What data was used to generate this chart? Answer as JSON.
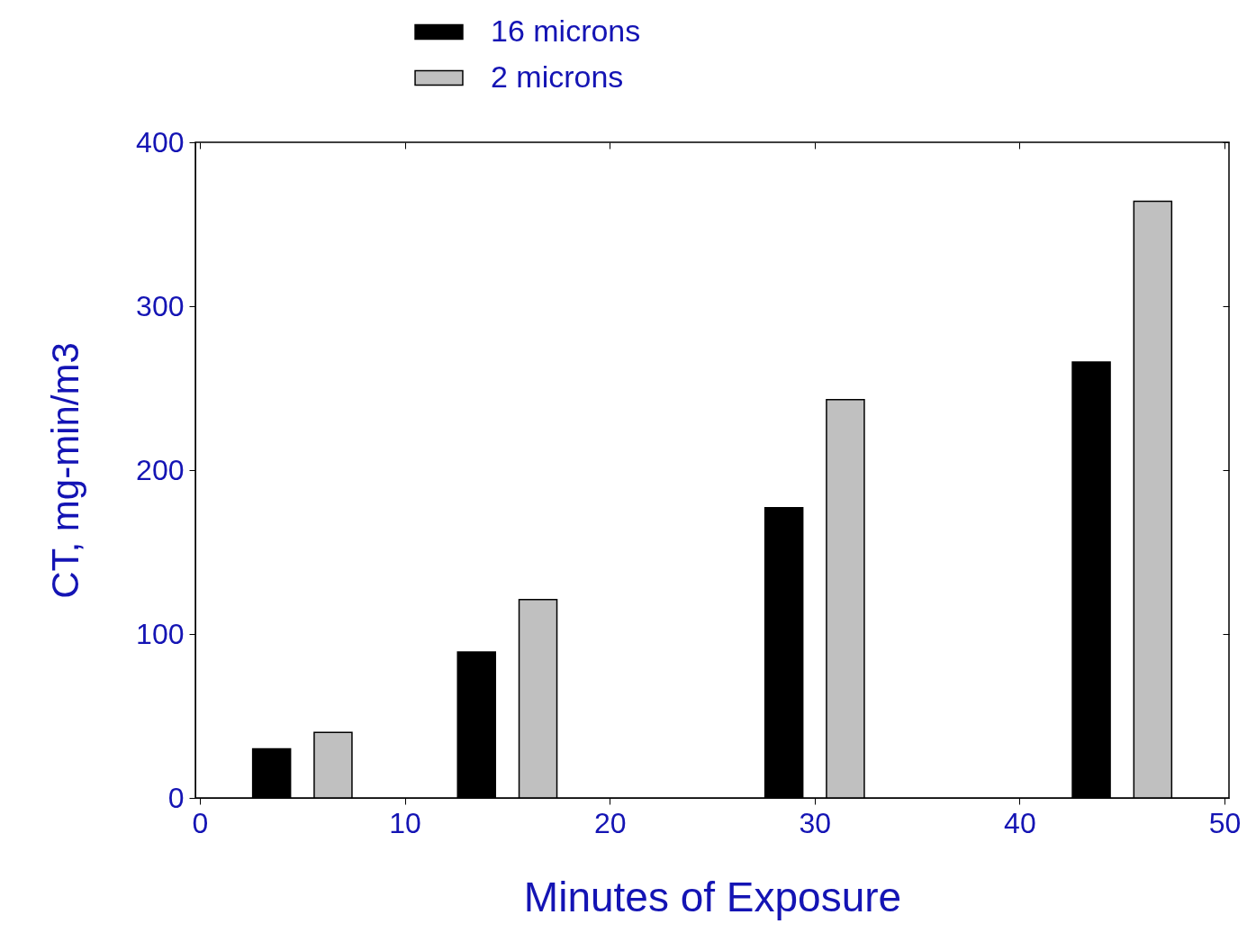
{
  "chart_data": {
    "type": "bar",
    "xlabel": "Minutes of Exposure",
    "ylabel": "CT, mg-min/m3",
    "series": [
      {
        "name": "16 microns",
        "color": "#000000",
        "x": [
          3.5,
          13.5,
          28.5,
          43.5
        ],
        "values": [
          30,
          89,
          177,
          266
        ]
      },
      {
        "name": "2 microns",
        "color": "#c0c0c0",
        "x": [
          6.5,
          16.5,
          31.5,
          46.5
        ],
        "values": [
          40,
          121,
          243,
          364
        ]
      }
    ],
    "xlim": [
      0,
      50
    ],
    "xticks": [
      0,
      10,
      20,
      30,
      40,
      50
    ],
    "ylim": [
      0,
      400
    ],
    "yticks": [
      0,
      100,
      200,
      300,
      400
    ],
    "grid": false,
    "legend": "top"
  }
}
